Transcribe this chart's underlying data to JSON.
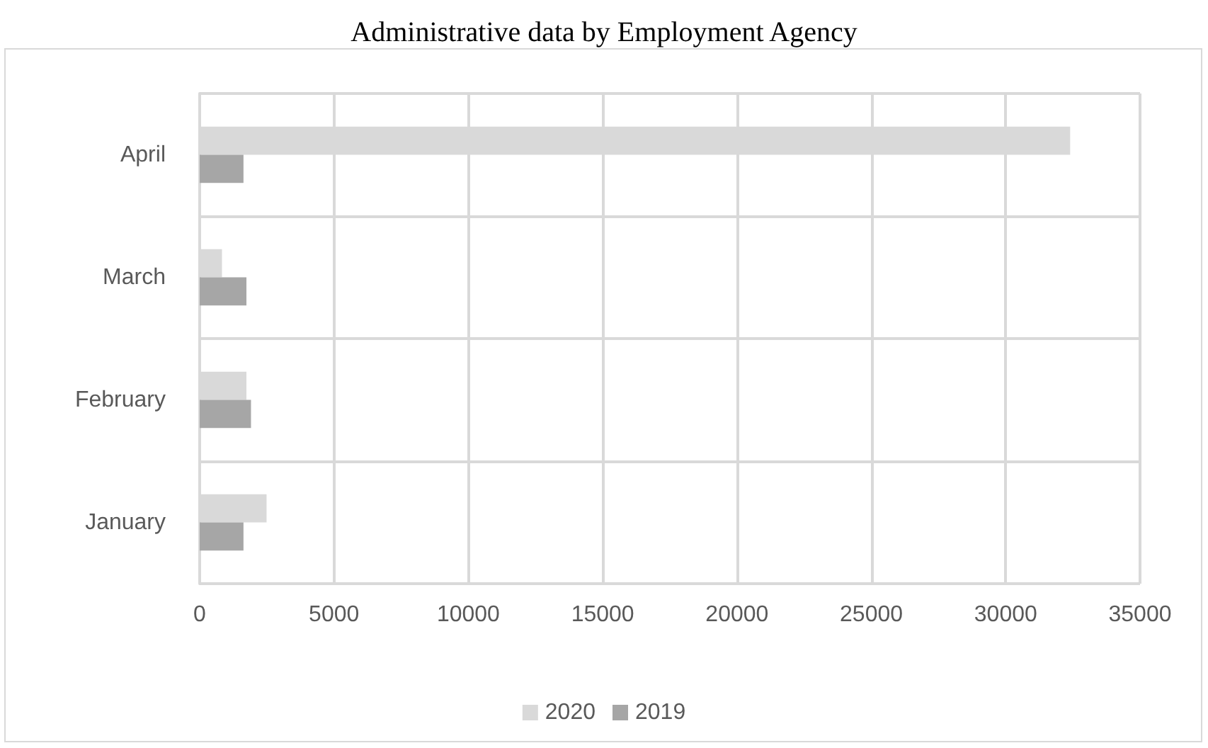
{
  "chart_data": {
    "type": "bar",
    "orientation": "horizontal",
    "title": "Administrative data by Employment Agency",
    "categories": [
      "April",
      "March",
      "February",
      "January"
    ],
    "series": [
      {
        "name": "2020",
        "color": "#d9d9d9",
        "values": [
          32400,
          830,
          1740,
          2490
        ]
      },
      {
        "name": "2019",
        "color": "#a6a6a6",
        "values": [
          1630,
          1740,
          1910,
          1630
        ]
      }
    ],
    "xlim": [
      0,
      35000
    ],
    "xticks": [
      0,
      5000,
      10000,
      15000,
      20000,
      25000,
      30000,
      35000
    ],
    "grid": true,
    "legend": "bottom"
  }
}
